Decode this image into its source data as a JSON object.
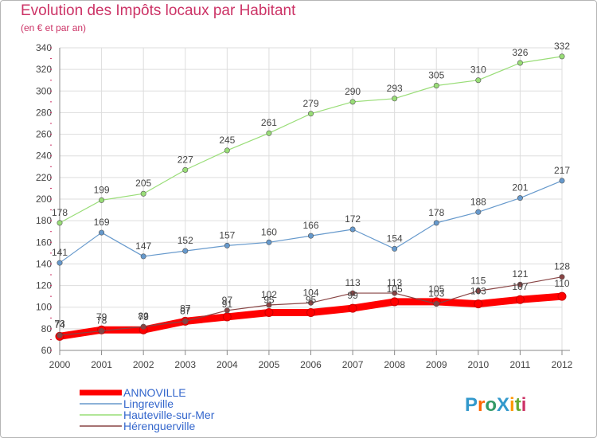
{
  "title": "Evolution des Impôts locaux par Habitant",
  "subtitle": "(en € et par an)",
  "logo_text": "ProXiti",
  "chart_data": {
    "type": "line",
    "title": "Evolution des Impôts locaux par Habitant",
    "subtitle": "(en € et par an)",
    "xlabel": "",
    "ylabel": "",
    "x": [
      "2000",
      "2001",
      "2002",
      "2003",
      "2004",
      "2005",
      "2006",
      "2007",
      "2008",
      "2009",
      "2010",
      "2011",
      "2012"
    ],
    "ylim": [
      60,
      340
    ],
    "yticks": [
      60,
      80,
      100,
      120,
      140,
      160,
      180,
      200,
      220,
      240,
      260,
      280,
      300,
      320,
      340
    ],
    "grid": true,
    "legend_position": "bottom-left",
    "series": [
      {
        "name": "ANNOVILLE",
        "color": "#ff0000",
        "emphasis": true,
        "show_labels": true,
        "values": [
          73,
          79,
          79,
          87,
          91,
          95,
          95,
          99,
          105,
          105,
          103,
          107,
          110
        ]
      },
      {
        "name": "Lingreville",
        "color": "#6699cc",
        "show_labels": true,
        "values": [
          141,
          169,
          147,
          152,
          157,
          160,
          166,
          172,
          154,
          178,
          188,
          201,
          217
        ]
      },
      {
        "name": "Hauteville-sur-Mer",
        "color": "#99dd77",
        "show_labels": true,
        "values": [
          178,
          199,
          205,
          227,
          245,
          261,
          279,
          290,
          293,
          305,
          310,
          326,
          332
        ]
      },
      {
        "name": "Hérenguerville",
        "color": "#884444",
        "show_labels": true,
        "values": [
          74,
          78,
          82,
          87,
          97,
          102,
          104,
          113,
          113,
          103,
          115,
          121,
          128
        ]
      }
    ]
  },
  "colors": {
    "title": "#cc3366",
    "legend_text": "#3366cc",
    "axis": "#888888",
    "grid": "#dddddd"
  }
}
